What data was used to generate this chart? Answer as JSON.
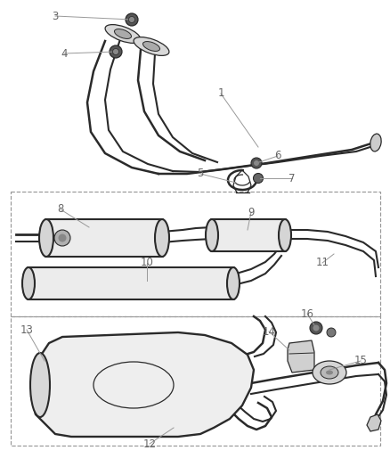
{
  "bg_color": "#ffffff",
  "line_color": "#2a2a2a",
  "label_color": "#666666",
  "dash_color": "#999999",
  "fig_w": 4.38,
  "fig_h": 5.33,
  "dpi": 100,
  "lw_pipe": 1.5,
  "lw_thin": 0.9,
  "lw_dash": 0.85
}
